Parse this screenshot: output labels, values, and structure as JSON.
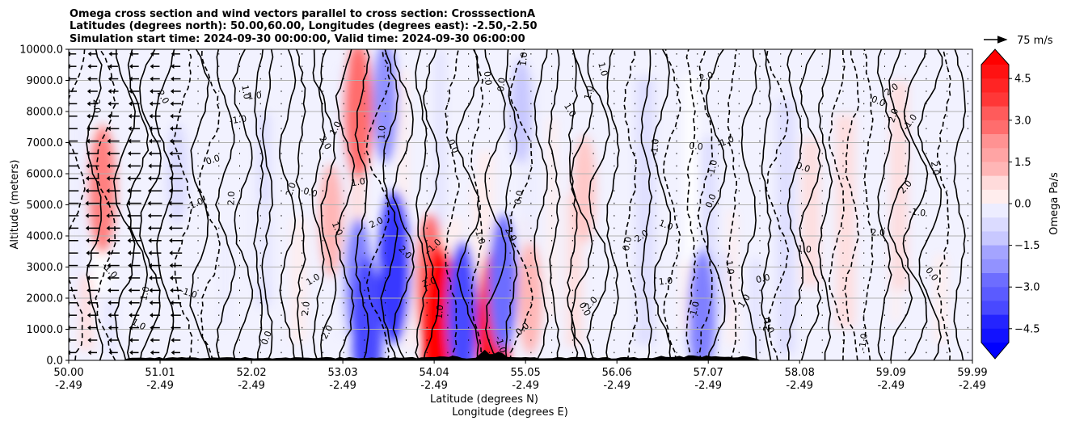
{
  "chart_data": {
    "type": "contour",
    "title_lines": [
      "Omega cross section and wind vectors parallel to cross section: CrosssectionA",
      "Latitudes (degrees north): 50.00,60.00, Longitudes (degrees east): -2.50,-2.50",
      "Simulation start time: 2024-09-30 00:00:00, Valid time: 2024-09-30 06:00:00"
    ],
    "xlabel_lines": [
      "Latitude (degrees N)",
      "Longitude (degrees E)"
    ],
    "ylabel": "Altitude (meters)",
    "ylim": [
      0,
      10000
    ],
    "xlim": [
      50.0,
      59.99
    ],
    "y_ticks": [
      "0.0",
      "1000.0",
      "2000.0",
      "3000.0",
      "4000.0",
      "5000.0",
      "6000.0",
      "7000.0",
      "8000.0",
      "9000.0",
      "10000.0"
    ],
    "y_tick_values": [
      0,
      1000,
      2000,
      3000,
      4000,
      5000,
      6000,
      7000,
      8000,
      9000,
      10000
    ],
    "x_tick_values": [
      50.0,
      51.01,
      52.02,
      53.03,
      54.04,
      55.05,
      56.06,
      57.07,
      58.08,
      59.09,
      59.99
    ],
    "x_ticks_lat": [
      "50.00",
      "51.01",
      "52.02",
      "53.03",
      "54.04",
      "55.05",
      "56.06",
      "57.07",
      "58.08",
      "59.09",
      "59.99"
    ],
    "x_ticks_lon": [
      "-2.49",
      "-2.49",
      "-2.49",
      "-2.49",
      "-2.49",
      "-2.49",
      "-2.49",
      "-2.49",
      "-2.49",
      "-2.49",
      "-2.49"
    ],
    "grid": "horizontal",
    "colorbar": {
      "label": "Omega Pa/s",
      "range": [
        -5.0,
        5.0
      ],
      "tick_values": [
        4.5,
        3.0,
        1.5,
        0.0,
        -1.5,
        -3.0,
        -4.5
      ],
      "ticks": [
        "4.5",
        "3.0",
        "1.5",
        "0.0",
        "−1.5",
        "−3.0",
        "−4.5"
      ],
      "colormap": "bwr",
      "extend": "both",
      "color_low": "#0000ff",
      "color_high": "#ff0000"
    },
    "quiver_key": {
      "label": "75 m/s"
    },
    "contour_labels": [
      "0.0",
      "1.0",
      "-1.0",
      "2.0"
    ],
    "features": [
      {
        "lat": 50.37,
        "alt": 5500,
        "omega": 2.5
      },
      {
        "lat": 51.2,
        "alt": 6000,
        "omega": -0.8
      },
      {
        "lat": 53.2,
        "alt": 8000,
        "omega": 3.0
      },
      {
        "lat": 53.5,
        "alt": 8300,
        "omega": -2.0
      },
      {
        "lat": 52.9,
        "alt": 4500,
        "omega": 1.5
      },
      {
        "lat": 53.2,
        "alt": 2500,
        "omega": -2.5
      },
      {
        "lat": 53.3,
        "alt": 1000,
        "omega": -3.5
      },
      {
        "lat": 53.6,
        "alt": 3000,
        "omega": -4.0
      },
      {
        "lat": 54.0,
        "alt": 2500,
        "omega": 3.0
      },
      {
        "lat": 54.1,
        "alt": 1000,
        "omega": 5.0
      },
      {
        "lat": 54.35,
        "alt": 1500,
        "omega": -3.5
      },
      {
        "lat": 54.7,
        "alt": 1000,
        "omega": 4.5
      },
      {
        "lat": 54.8,
        "alt": 2500,
        "omega": -3.0
      },
      {
        "lat": 55.1,
        "alt": 2000,
        "omega": 1.5
      },
      {
        "lat": 55.7,
        "alt": 5500,
        "omega": 1.2
      },
      {
        "lat": 57.0,
        "alt": 1500,
        "omega": -2.5
      },
      {
        "lat": 55.0,
        "alt": 8000,
        "omega": -1.0
      }
    ]
  }
}
